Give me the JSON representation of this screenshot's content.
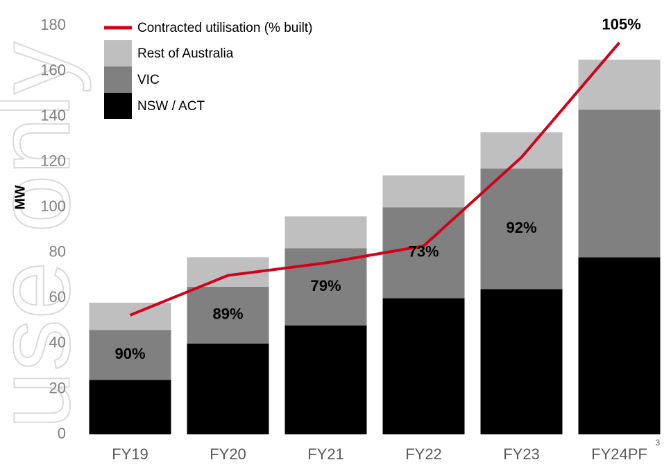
{
  "chart_data": {
    "type": "stacked-bar-line",
    "watermark": "use only",
    "y_label": "MW",
    "categories": [
      "FY19",
      "FY20",
      "FY21",
      "FY22",
      "FY23",
      "FY24PF"
    ],
    "category_note": "3",
    "ylim": [
      0,
      180
    ],
    "yticks": [
      0,
      20,
      40,
      60,
      80,
      100,
      120,
      140,
      160,
      180
    ],
    "series": [
      {
        "name": "NSW / ACT",
        "color": "#000000",
        "values": [
          24,
          40,
          48,
          60,
          64,
          78
        ]
      },
      {
        "name": "VIC",
        "color": "#808080",
        "values": [
          22,
          25,
          34,
          40,
          53,
          65
        ]
      },
      {
        "name": "Rest of Australia",
        "color": "#bfbfbf",
        "values": [
          12,
          13,
          14,
          14,
          16,
          22
        ]
      }
    ],
    "line": {
      "name": "Contracted utilisation (% built)",
      "color": "#d0021b",
      "values": [
        52.5,
        70,
        75.5,
        83,
        122,
        172.5
      ]
    },
    "annotations": [
      "90%",
      "89%",
      "79%",
      "73%",
      "92%",
      "105%"
    ]
  }
}
